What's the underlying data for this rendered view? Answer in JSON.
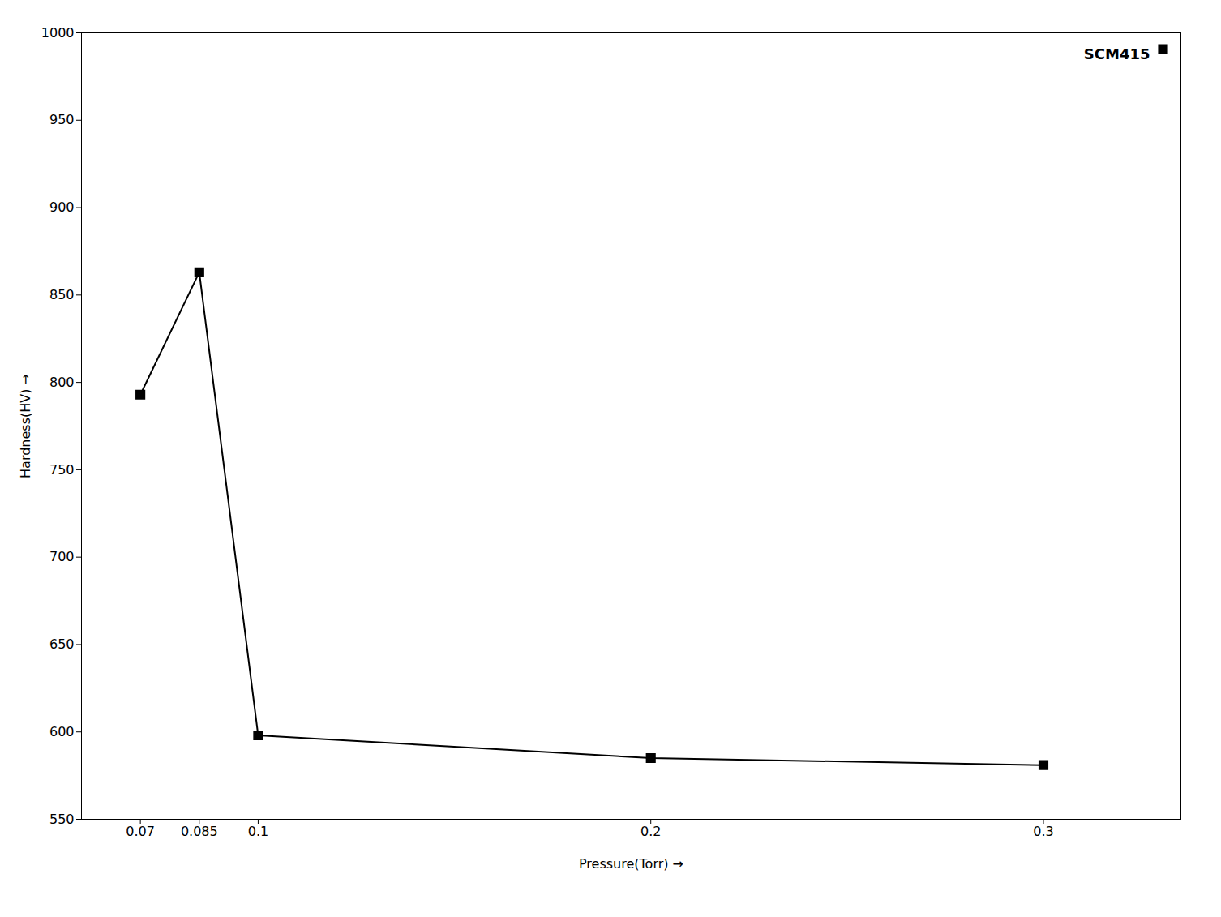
{
  "chart_data": {
    "type": "line",
    "xlabel": "Pressure(Torr)",
    "ylabel": "Hardness(HV)",
    "x": [
      0.07,
      0.085,
      0.1,
      0.2,
      0.3
    ],
    "series": [
      {
        "name": "SCM415",
        "color": "#000000",
        "marker": "square",
        "values": [
          793,
          863,
          598,
          585,
          581
        ]
      }
    ],
    "xlim": [
      0.055,
      0.335
    ],
    "ylim": [
      550,
      1000
    ],
    "xticks": [
      0.07,
      0.085,
      0.1,
      0.2,
      0.3
    ],
    "yticks": [
      550,
      600,
      650,
      700,
      750,
      800,
      850,
      900,
      950,
      1000
    ],
    "grid": false,
    "legend": "upper right"
  }
}
